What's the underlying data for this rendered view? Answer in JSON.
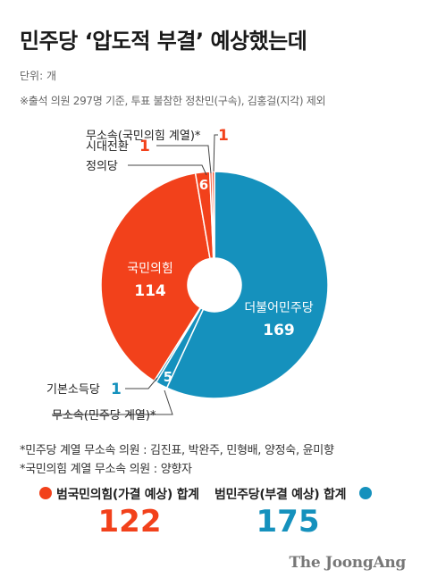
{
  "title": "민주당 ‘압도적 부결’ 예상했는데",
  "unit": "단위: 개",
  "note": "※출석 의원 297명 기준, 투표 불참한 정찬민(구속), 김홍걸(지각) 제외",
  "colors": {
    "red": "#f2411b",
    "blue": "#1591bd",
    "gray": "#9a9a9a",
    "white": "#ffffff"
  },
  "chart_data": {
    "type": "pie",
    "donut": true,
    "title": "민주당 ‘압도적 부결’ 예상했는데",
    "unit": "개",
    "slices": [
      {
        "label": "더불어민주당",
        "value": 169,
        "color": "#1591bd"
      },
      {
        "label": "무소속(민주당 계열)",
        "value": 5,
        "color": "#1591bd"
      },
      {
        "label": "기본소득당",
        "value": 1,
        "color": "#1591bd"
      },
      {
        "label": "국민의힘",
        "value": 114,
        "color": "#f2411b"
      },
      {
        "label": "정의당",
        "value": 6,
        "color": "#f2411b"
      },
      {
        "label": "시대전환",
        "value": 1,
        "color": "#f2411b"
      },
      {
        "label": "무소속(국민의힘 계열)",
        "value": 1,
        "color": "#f2411b"
      }
    ],
    "totals": [
      {
        "label": "범국민의힘(가결 예상) 합계",
        "value": 122,
        "color": "#f2411b"
      },
      {
        "label": "범민주당(부결 예상) 합계",
        "value": 175,
        "color": "#1591bd"
      }
    ]
  },
  "callouts": {
    "muso_ppp": "무소속(국민의힘 계열)*",
    "muso_ppp_val": "1",
    "sidae": "시대전환",
    "sidae_val": "1",
    "jeongui": "정의당",
    "jeongui_val": "6",
    "ppp_name": "국민의힘",
    "ppp_val": "114",
    "dem_name": "더불어민주당",
    "dem_val": "169",
    "muso_dem_val": "5",
    "gibon": "기본소득당",
    "gibon_val": "1",
    "muso_dem": "무소속(민주당 계열)*"
  },
  "footnotes": [
    "*민주당 계열 무소속 의원 : 김진표, 박완주, 민형배, 양정숙, 윤미향",
    "*국민의힘 계열 무소속 의원 : 양향자"
  ],
  "totals": {
    "left_label": "범국민의힘(가결 예상) 합계",
    "left_value": "122",
    "right_label": "범민주당(부결 예상) 합계",
    "right_value": "175"
  },
  "brand": "The JoongAng"
}
